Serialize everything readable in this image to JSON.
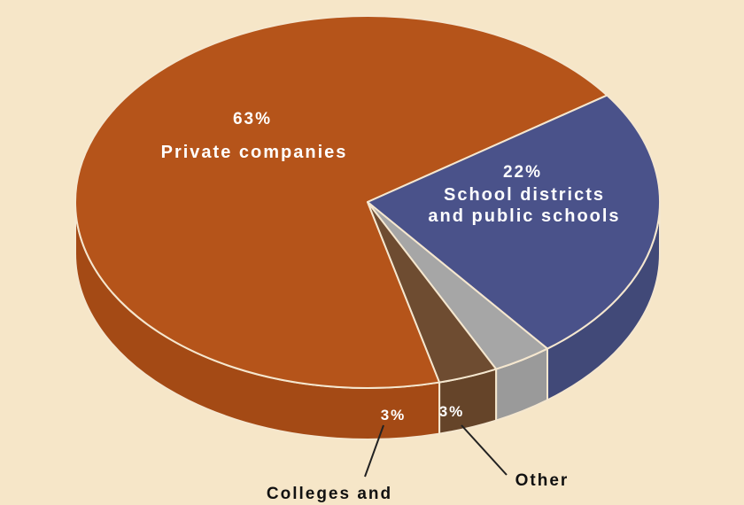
{
  "colors": {
    "background": "#f6e6c8",
    "private": "#b5541a",
    "private_side": "#a44a15",
    "school": "#4a528a",
    "school_side": "#414978",
    "other": "#a6a6a6",
    "other_side": "#9a9a9a",
    "colleges": "#6e4c31",
    "colleges_side": "#654429",
    "edge": "#f5e7cf",
    "leader": "#222222"
  },
  "chart_data": {
    "type": "pie",
    "title": "",
    "slices": [
      {
        "label": "Private companies",
        "value": 63,
        "value_label": "63%"
      },
      {
        "label": "School districts and public schools",
        "label_lines": [
          "School districts",
          "and public schools"
        ],
        "value": 22,
        "value_label": "22%"
      },
      {
        "label": "Other organizations",
        "value": 3,
        "value_label": "3%"
      },
      {
        "label": "Colleges and",
        "value": 3,
        "value_label": "3%"
      }
    ],
    "legend": "none"
  }
}
